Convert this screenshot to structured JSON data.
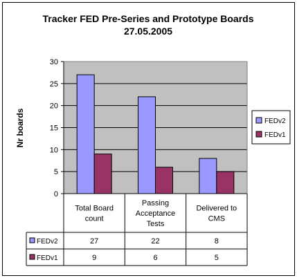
{
  "chart_data": {
    "type": "bar",
    "title": "Tracker FED Pre-Series and Prototype Boards",
    "subtitle": "27.05.2005",
    "ylabel": "Nr boards",
    "xlabel": "",
    "ylim": [
      0,
      30
    ],
    "yticks": [
      0,
      5,
      10,
      15,
      20,
      25,
      30
    ],
    "grid": true,
    "legend_position": "right",
    "categories": [
      [
        "Total Board",
        "count"
      ],
      [
        "Passing",
        "Acceptance",
        "Tests"
      ],
      [
        "Delivered to",
        "CMS"
      ]
    ],
    "series": [
      {
        "name": "FEDv2",
        "values": [
          27,
          22,
          8
        ],
        "color": "#9999ff"
      },
      {
        "name": "FEDv1",
        "values": [
          9,
          6,
          5
        ],
        "color": "#993366"
      }
    ],
    "plot_background": "#c0c0c0",
    "data_table": true
  }
}
